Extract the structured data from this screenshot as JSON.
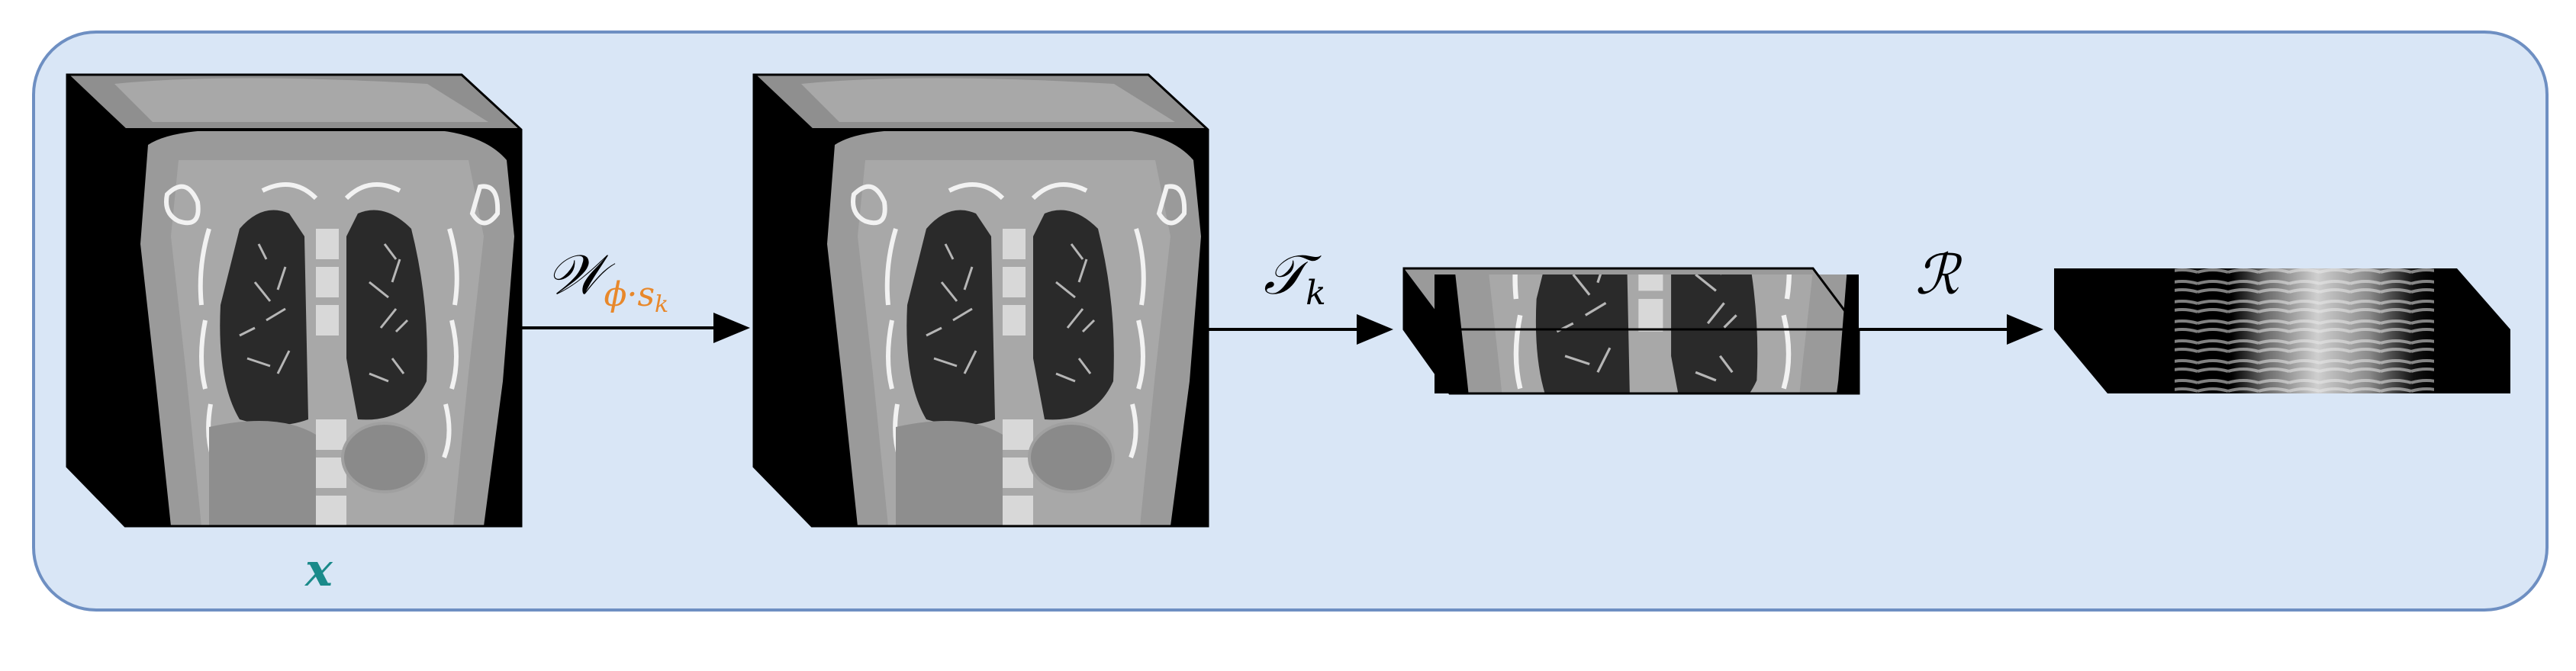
{
  "colors": {
    "panel_fill": "#d9e6f6",
    "panel_border": "#6e8fc2",
    "accent_orange": "#e8882b",
    "accent_teal": "#1a8a8a"
  },
  "labels": {
    "input_volume": "x",
    "warp_main": "𝒲",
    "warp_subscript": "ϕ·s",
    "warp_subscript_k": "k",
    "transform_main": "𝒯",
    "transform_subscript": "k",
    "projection": "ℛ"
  },
  "nodes": [
    {
      "id": "input-ct-volume",
      "kind": "ct-cube"
    },
    {
      "id": "warped-ct-volume",
      "kind": "ct-cube"
    },
    {
      "id": "transformed-slab",
      "kind": "ct-slab"
    },
    {
      "id": "projection-output",
      "kind": "projection-slab"
    }
  ],
  "edges": [
    {
      "from": "input-ct-volume",
      "to": "warped-ct-volume",
      "label": "warp"
    },
    {
      "from": "warped-ct-volume",
      "to": "transformed-slab",
      "label": "transform"
    },
    {
      "from": "transformed-slab",
      "to": "projection-output",
      "label": "projection"
    }
  ]
}
